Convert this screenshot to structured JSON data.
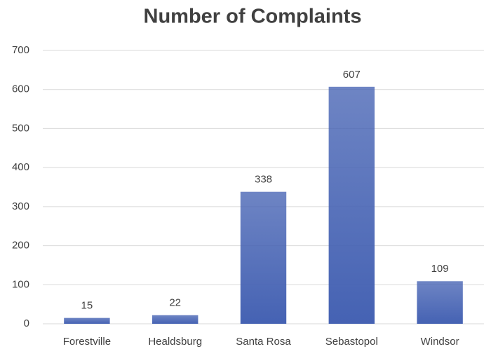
{
  "chart_data": {
    "type": "bar",
    "title": "Number of Complaints",
    "categories": [
      "Forestville",
      "Healdsburg",
      "Santa Rosa",
      "Sebastopol",
      "Windsor"
    ],
    "values": [
      15,
      22,
      338,
      607,
      109
    ],
    "color": "#4562b3",
    "ylim": [
      0,
      700
    ],
    "yticks": [
      0,
      100,
      200,
      300,
      400,
      500,
      600,
      700
    ],
    "grid": true,
    "data_labels": true
  }
}
